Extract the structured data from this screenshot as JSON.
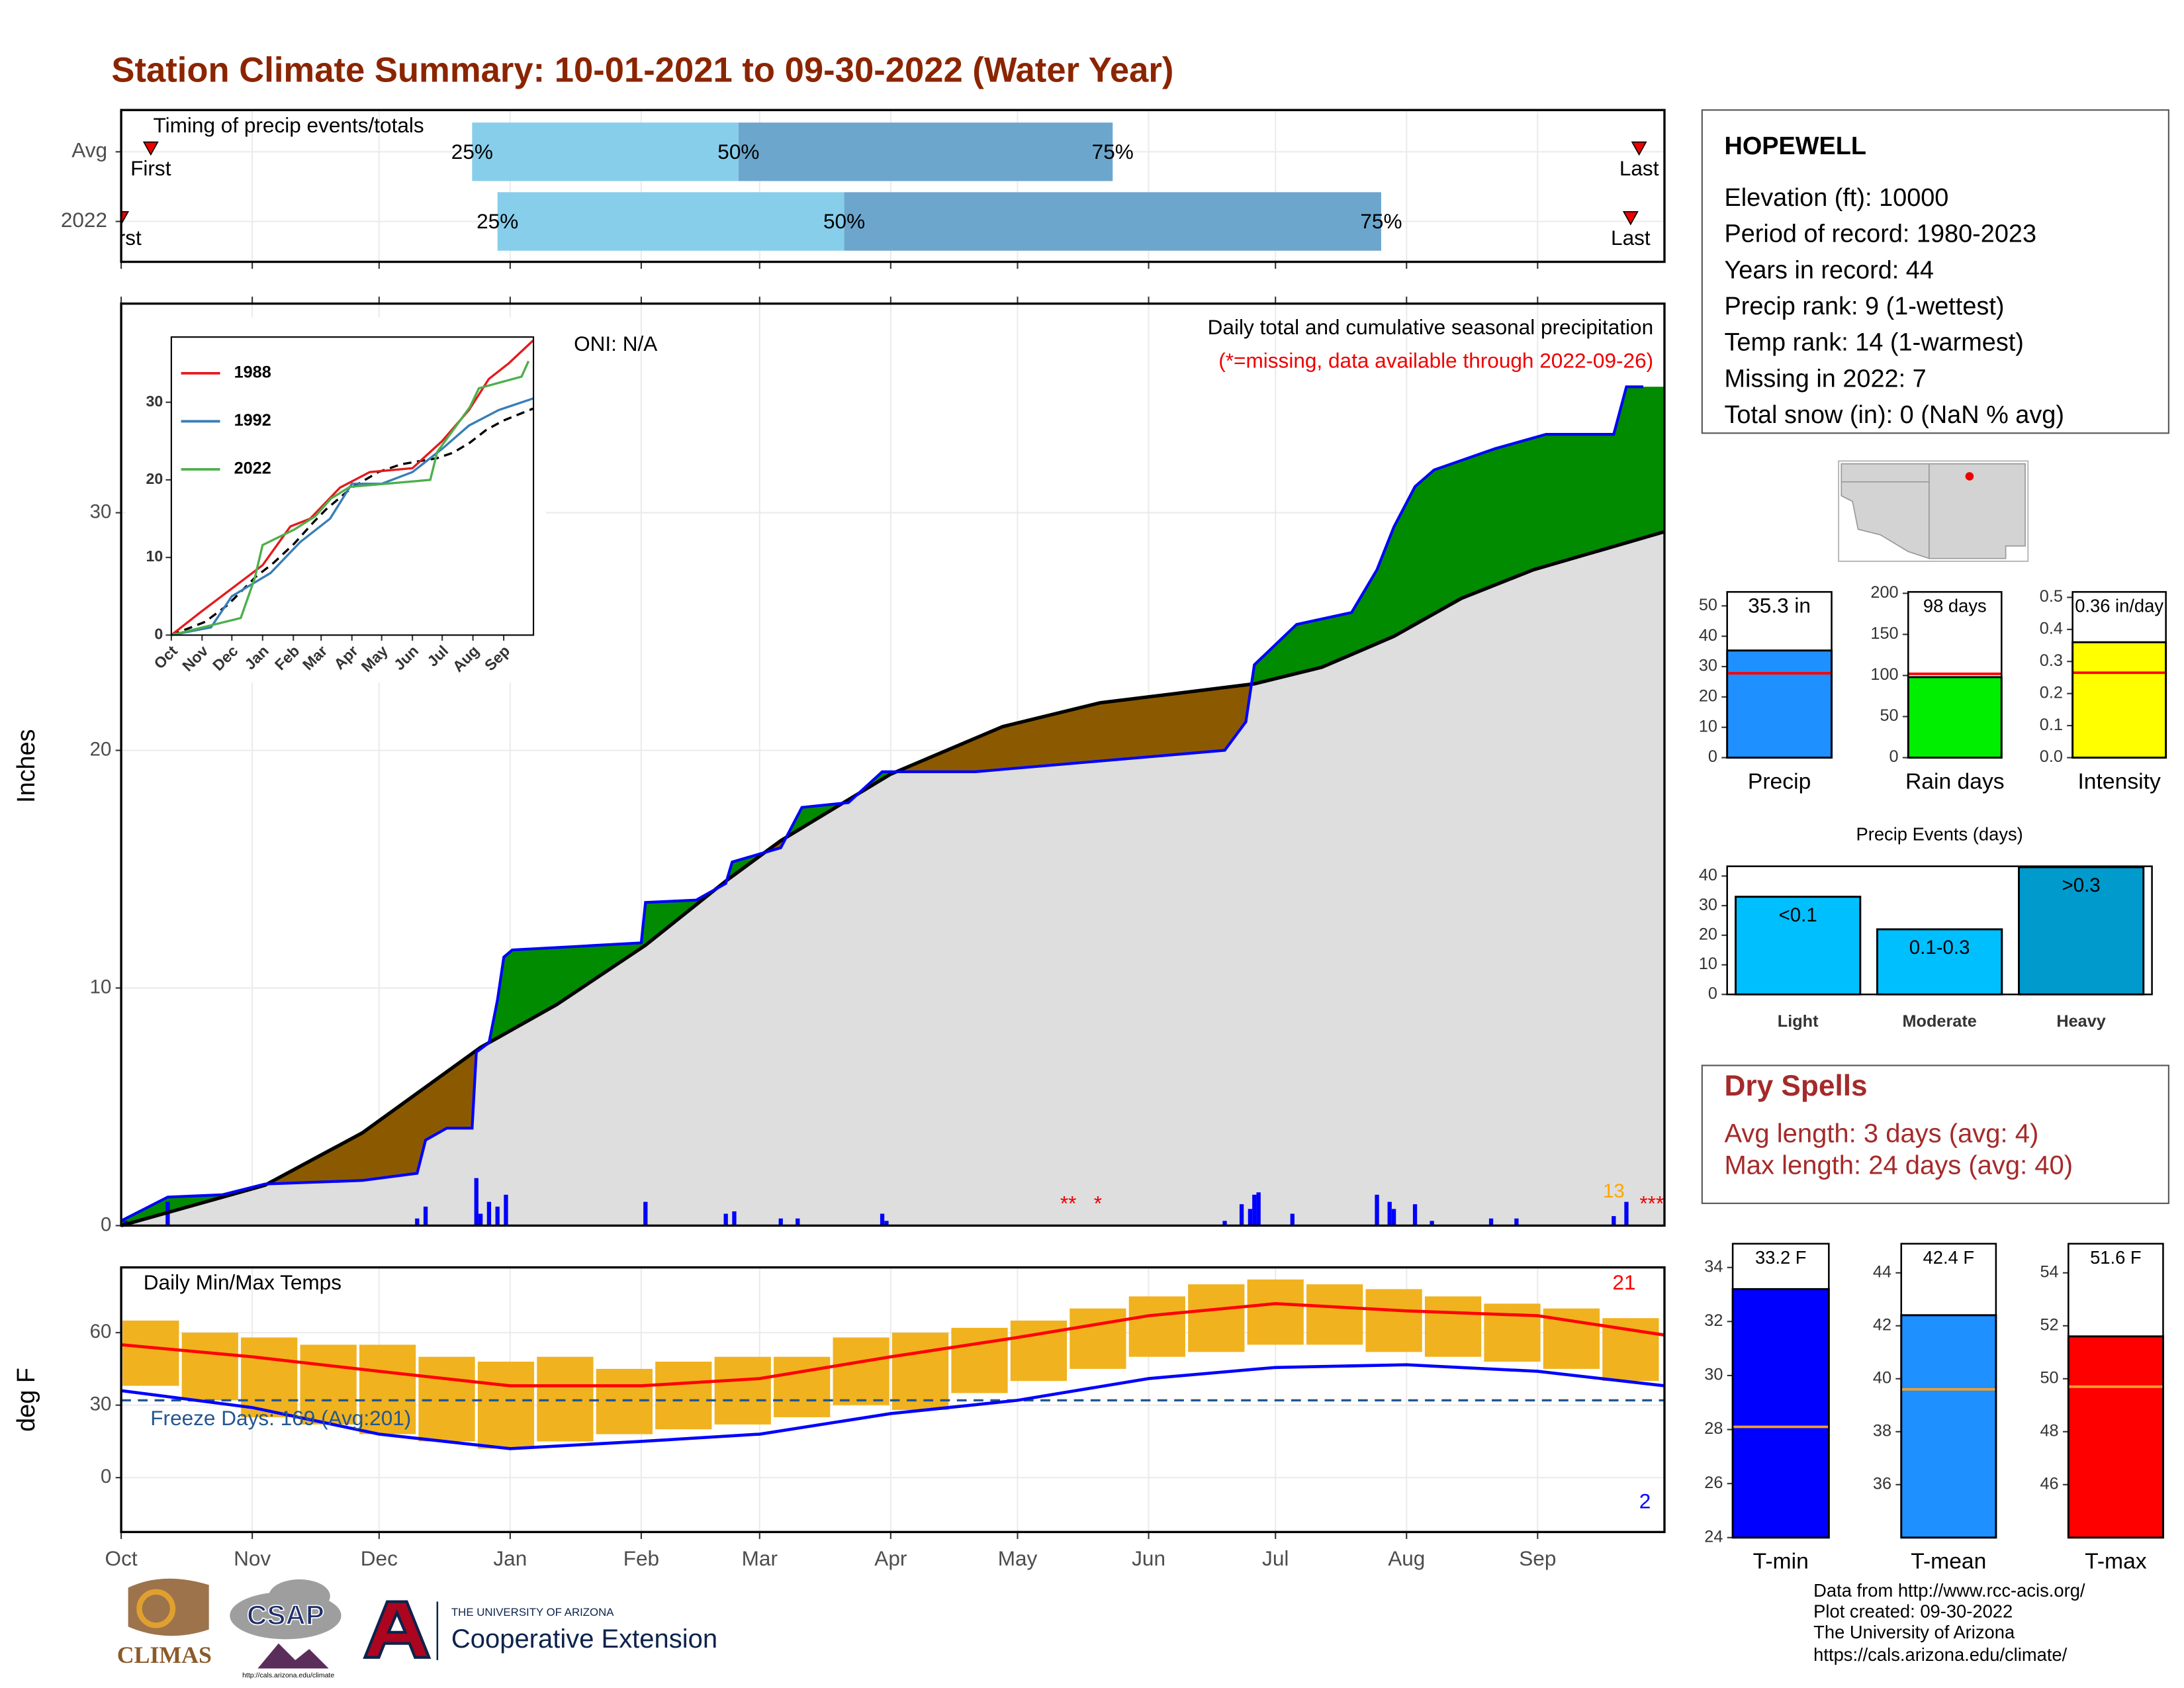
{
  "title": "Station Climate Summary: 10-01-2021 to 09-30-2022 (Water Year)",
  "chart_data": [
    {
      "type": "timing",
      "title": "Timing of precip events/totals",
      "categories": [
        "Avg",
        "2022"
      ],
      "xlim": [
        0,
        365
      ],
      "series": [
        {
          "name": "First",
          "values": [
            7,
            0
          ]
        },
        {
          "name": "25%",
          "values": [
            83,
            89
          ]
        },
        {
          "name": "50%",
          "values": [
            146,
            171
          ]
        },
        {
          "name": "75%",
          "values": [
            234.5,
            298
          ]
        },
        {
          "name": "Last",
          "values": [
            359,
            357
          ]
        }
      ],
      "bar_colors": [
        "#87ceeb",
        "#6ca6cd"
      ],
      "marker_color": "#ee0000"
    },
    {
      "type": "area",
      "title": "Daily total and cumulative seasonal precipitation",
      "subtitle": "(*=missing, data available through 2022-09-26)",
      "annotation": "ONI: N/A",
      "ylabel": "Inches",
      "xlim": [
        0,
        365
      ],
      "ylim": [
        0,
        38.8
      ],
      "yticks": [
        0,
        10,
        20,
        30
      ],
      "grid": true,
      "series": [
        {
          "color": "#0000ff",
          "x": [
            0,
            11,
            24,
            34,
            57,
            70,
            72,
            77,
            83,
            84,
            87,
            89,
            90.5,
            92.5,
            108,
            123,
            124,
            136,
            143,
            144.5,
            156,
            161,
            172,
            180,
            202,
            261,
            266,
            268,
            278,
            291,
            297,
            301,
            306,
            310.5,
            325,
            337,
            353,
            356,
            360
          ],
          "values": [
            0.2,
            1.2,
            1.3,
            1.75,
            1.9,
            2.2,
            3.6,
            4.1,
            4.1,
            7.3,
            7.7,
            9.5,
            11.3,
            11.6,
            11.75,
            11.9,
            13.6,
            13.7,
            14.4,
            15.3,
            15.9,
            17.6,
            17.8,
            19.1,
            19.1,
            20,
            21.2,
            23.6,
            25.3,
            25.8,
            27.6,
            29.4,
            31.1,
            31.8,
            32.7,
            33.3,
            33.3,
            35.3,
            35.3
          ]
        },
        {
          "color": "#000000",
          "x": [
            0,
            34,
            57,
            85,
            103,
            124,
            143,
            156,
            182,
            208.5,
            231.5,
            268,
            284,
            301,
            317,
            334,
            365
          ],
          "values": [
            0,
            1.7,
            3.9,
            7.5,
            9.3,
            11.8,
            14.5,
            16.2,
            19.0,
            21,
            22.0,
            22.8,
            23.5,
            24.8,
            26.4,
            27.6,
            29.2
          ]
        }
      ],
      "above_color": "#008b00",
      "below_color": "#8b5a00",
      "base_color": "#dedede",
      "daily": {
        "color": "#0000ff",
        "x": [
          1,
          11,
          70,
          72,
          84,
          85,
          87,
          89,
          91,
          124,
          143,
          145,
          156,
          160,
          180,
          181,
          261,
          265,
          267,
          268,
          269,
          277,
          297,
          300,
          301,
          306,
          310,
          324,
          330,
          353,
          356
        ],
        "values": [
          0.2,
          1.0,
          0.3,
          0.8,
          2.0,
          0.5,
          1.0,
          0.8,
          1.3,
          1.0,
          0.5,
          0.6,
          0.3,
          0.3,
          0.5,
          0.2,
          0.2,
          0.9,
          0.7,
          1.3,
          1.4,
          0.5,
          1.3,
          1.0,
          0.7,
          0.9,
          0.2,
          0.3,
          0.3,
          0.4,
          1.0
        ]
      },
      "missing": [
        {
          "x": 224,
          "label": "**"
        },
        {
          "x": 231,
          "label": "*"
        },
        {
          "x": 362,
          "label": "***"
        }
      ],
      "missing_color": "#ee0000",
      "record_days": {
        "x": 353,
        "label": "13",
        "color": "#ffa500"
      }
    },
    {
      "type": "line",
      "xlim": [
        0,
        365
      ],
      "ylim": [
        0,
        38.4
      ],
      "yticks": [
        0,
        10,
        20,
        30
      ],
      "xticks": [
        {
          "value": 0,
          "label": "Oct"
        },
        {
          "value": 31,
          "label": "Nov"
        },
        {
          "value": 61,
          "label": "Dec"
        },
        {
          "value": 92,
          "label": "Jan"
        },
        {
          "value": 123,
          "label": "Feb"
        },
        {
          "value": 151,
          "label": "Mar"
        },
        {
          "value": 182,
          "label": "Apr"
        },
        {
          "value": 212,
          "label": "May"
        },
        {
          "value": 243,
          "label": "Jun"
        },
        {
          "value": 273,
          "label": "Jul"
        },
        {
          "value": 304,
          "label": "Aug"
        },
        {
          "value": 335,
          "label": "Sep"
        }
      ],
      "series": [
        {
          "name": "1988",
          "color": "#e41a1c",
          "x": [
            0,
            30,
            61,
            92,
            120,
            140,
            170,
            200,
            243,
            273,
            300,
            320,
            340,
            365
          ],
          "values": [
            0,
            3,
            6,
            9,
            14,
            15,
            19,
            21,
            21.5,
            25,
            29,
            33,
            35,
            38
          ]
        },
        {
          "name": "1992",
          "color": "#377eb8",
          "x": [
            0,
            40,
            61,
            100,
            130,
            160,
            182,
            212,
            243,
            273,
            300,
            330,
            365
          ],
          "values": [
            0,
            1,
            5,
            8,
            12,
            15,
            19.5,
            19.5,
            21,
            24,
            27,
            29,
            30.5
          ]
        },
        {
          "name": "2022",
          "color": "#4daf4a",
          "x": [
            0,
            70,
            84,
            92,
            124,
            145,
            161,
            180,
            261,
            268,
            301,
            310,
            353,
            360
          ],
          "values": [
            0,
            2.2,
            7.3,
            11.6,
            13.6,
            15.3,
            17.6,
            19.1,
            20,
            23.6,
            29.4,
            31.8,
            33.3,
            35.3
          ]
        }
      ]
    },
    {
      "type": "range",
      "title": "Daily Min/Max Temps",
      "ylabel": "deg F",
      "xlim": [
        0,
        365
      ],
      "ylim": [
        -22.5,
        87
      ],
      "yticks": [
        0,
        30,
        60
      ],
      "grid": true,
      "xticks": [
        {
          "value": 0,
          "label": "Oct"
        },
        {
          "value": 31,
          "label": "Nov"
        },
        {
          "value": 61,
          "label": "Dec"
        },
        {
          "value": 92,
          "label": "Jan"
        },
        {
          "value": 123,
          "label": "Feb"
        },
        {
          "value": 151,
          "label": "Mar"
        },
        {
          "value": 182,
          "label": "Apr"
        },
        {
          "value": 212,
          "label": "May"
        },
        {
          "value": 243,
          "label": "Jun"
        },
        {
          "value": 273,
          "label": "Jul"
        },
        {
          "value": 304,
          "label": "Aug"
        },
        {
          "value": 335,
          "label": "Sep"
        }
      ],
      "x": [
        0,
        31,
        61,
        92,
        123,
        151,
        182,
        212,
        243,
        273,
        304,
        335,
        365
      ],
      "series": [
        {
          "color": "#ff0000",
          "values": [
            55,
            50,
            44,
            38,
            38,
            41,
            50,
            58,
            67,
            72,
            69,
            67,
            59
          ]
        },
        {
          "color": "#0000ff",
          "values": [
            36,
            29,
            18,
            12,
            15,
            18,
            26.5,
            32,
            41,
            45.6,
            46.7,
            44,
            38
          ]
        }
      ],
      "ranges": {
        "color": "#f0b21f",
        "x": [
          0,
          14,
          28,
          42,
          56,
          70,
          84,
          98,
          112,
          126,
          140,
          154,
          168,
          182,
          196,
          210,
          224,
          238,
          252,
          266,
          280,
          294,
          308,
          322,
          336,
          350
        ],
        "low": [
          38,
          32,
          25,
          22,
          18,
          15,
          12,
          15,
          18,
          20,
          22,
          25,
          30,
          28,
          35,
          40,
          45,
          50,
          52,
          55,
          55,
          52,
          50,
          48,
          45,
          40
        ],
        "high": [
          65,
          60,
          58,
          55,
          55,
          50,
          48,
          50,
          45,
          48,
          50,
          50,
          58,
          60,
          62,
          65,
          70,
          75,
          80,
          82,
          80,
          78,
          75,
          72,
          70,
          66
        ]
      },
      "freeze_line": 32,
      "freeze_color": "#24568f",
      "freeze_label": "Freeze Days: 169 (Avg:201)",
      "record_highs": 21,
      "record_lows": 2
    },
    {
      "type": "bar",
      "categories": [
        "Precip"
      ],
      "values": [
        35.3
      ],
      "value_labels": [
        "35.3 in"
      ],
      "color": "#1e90ff",
      "average": 27.8,
      "average_color": "#ff0000",
      "ylim": [
        0,
        54.6
      ],
      "yticks": [
        0,
        10,
        20,
        30,
        40,
        50
      ]
    },
    {
      "type": "bar",
      "categories": [
        "Rain days"
      ],
      "values": [
        98
      ],
      "value_labels": [
        "98 days"
      ],
      "color": "#00ee00",
      "average": 102,
      "average_color": "#ff0000",
      "ylim": [
        0,
        201.7
      ],
      "yticks": [
        0,
        50,
        100,
        150,
        200
      ]
    },
    {
      "type": "bar",
      "categories": [
        "Intensity"
      ],
      "values": [
        0.36
      ],
      "value_labels": [
        "0.36 in/day"
      ],
      "color": "#ffff00",
      "average": 0.265,
      "average_color": "#ff0000",
      "ylim": [
        0,
        0.517
      ],
      "yticks": [
        {
          "value": 0,
          "label": "0.0"
        },
        0.1,
        0.2,
        0.3,
        0.4,
        0.5
      ]
    },
    {
      "type": "bar",
      "title": "Precip Events (days)",
      "categories": [
        "Light",
        "Moderate",
        "Heavy"
      ],
      "values": [
        33,
        22,
        43
      ],
      "bar_labels": [
        "<0.1",
        "0.1-0.3",
        ">0.3"
      ],
      "colors": [
        "#00bfff",
        "#00bfff",
        "#009acd"
      ],
      "ylim": [
        0,
        43.3
      ],
      "yticks": [
        0,
        10,
        20,
        30,
        40
      ]
    },
    {
      "type": "bar",
      "categories": [
        "T-min"
      ],
      "values": [
        33.2
      ],
      "value_labels": [
        "33.2 F"
      ],
      "color": "#0000ff",
      "average": 28.1,
      "average_color": "#f0a030",
      "ylim": [
        24,
        34.88
      ],
      "yticks": [
        24,
        26,
        28,
        30,
        32,
        34
      ]
    },
    {
      "type": "bar",
      "categories": [
        "T-mean"
      ],
      "values": [
        42.4
      ],
      "value_labels": [
        "42.4 F"
      ],
      "color": "#1e90ff",
      "average": 39.6,
      "average_color": "#f0a030",
      "ylim": [
        34,
        45.1
      ],
      "yticks": [
        36,
        38,
        40,
        42,
        44
      ]
    },
    {
      "type": "bar",
      "categories": [
        "T-max"
      ],
      "values": [
        51.6
      ],
      "value_labels": [
        "51.6 F"
      ],
      "color": "#ff0000",
      "average": 49.7,
      "average_color": "#f0a030",
      "ylim": [
        44,
        55.1
      ],
      "yticks": [
        46,
        48,
        50,
        52,
        54
      ]
    }
  ],
  "station": {
    "name": "HOPEWELL",
    "lines": [
      "Elevation (ft): 10000",
      "Period of record: 1980-2023",
      "Years in record: 44",
      "Precip rank: 9 (1-wettest)",
      "Temp rank: 14 (1-warmest)",
      "Missing in 2022: 7",
      "Total snow (in): 0 (NaN % avg)"
    ]
  },
  "dry_spells": {
    "title": "Dry Spells",
    "lines": [
      "Avg length: 3 days (avg: 4)",
      "Max length: 24 days (avg: 40)"
    ]
  },
  "footer": {
    "logos": [
      "CLIMAS",
      "CSAP",
      "http://cals.arizona.edu/climate",
      "THE UNIVERSITY OF ARIZONA",
      "Cooperative Extension"
    ],
    "credits": [
      "Data from http://www.rcc-acis.org/",
      "Plot created: 09-30-2022",
      "The University of Arizona",
      "https://cals.arizona.edu/climate/"
    ]
  }
}
